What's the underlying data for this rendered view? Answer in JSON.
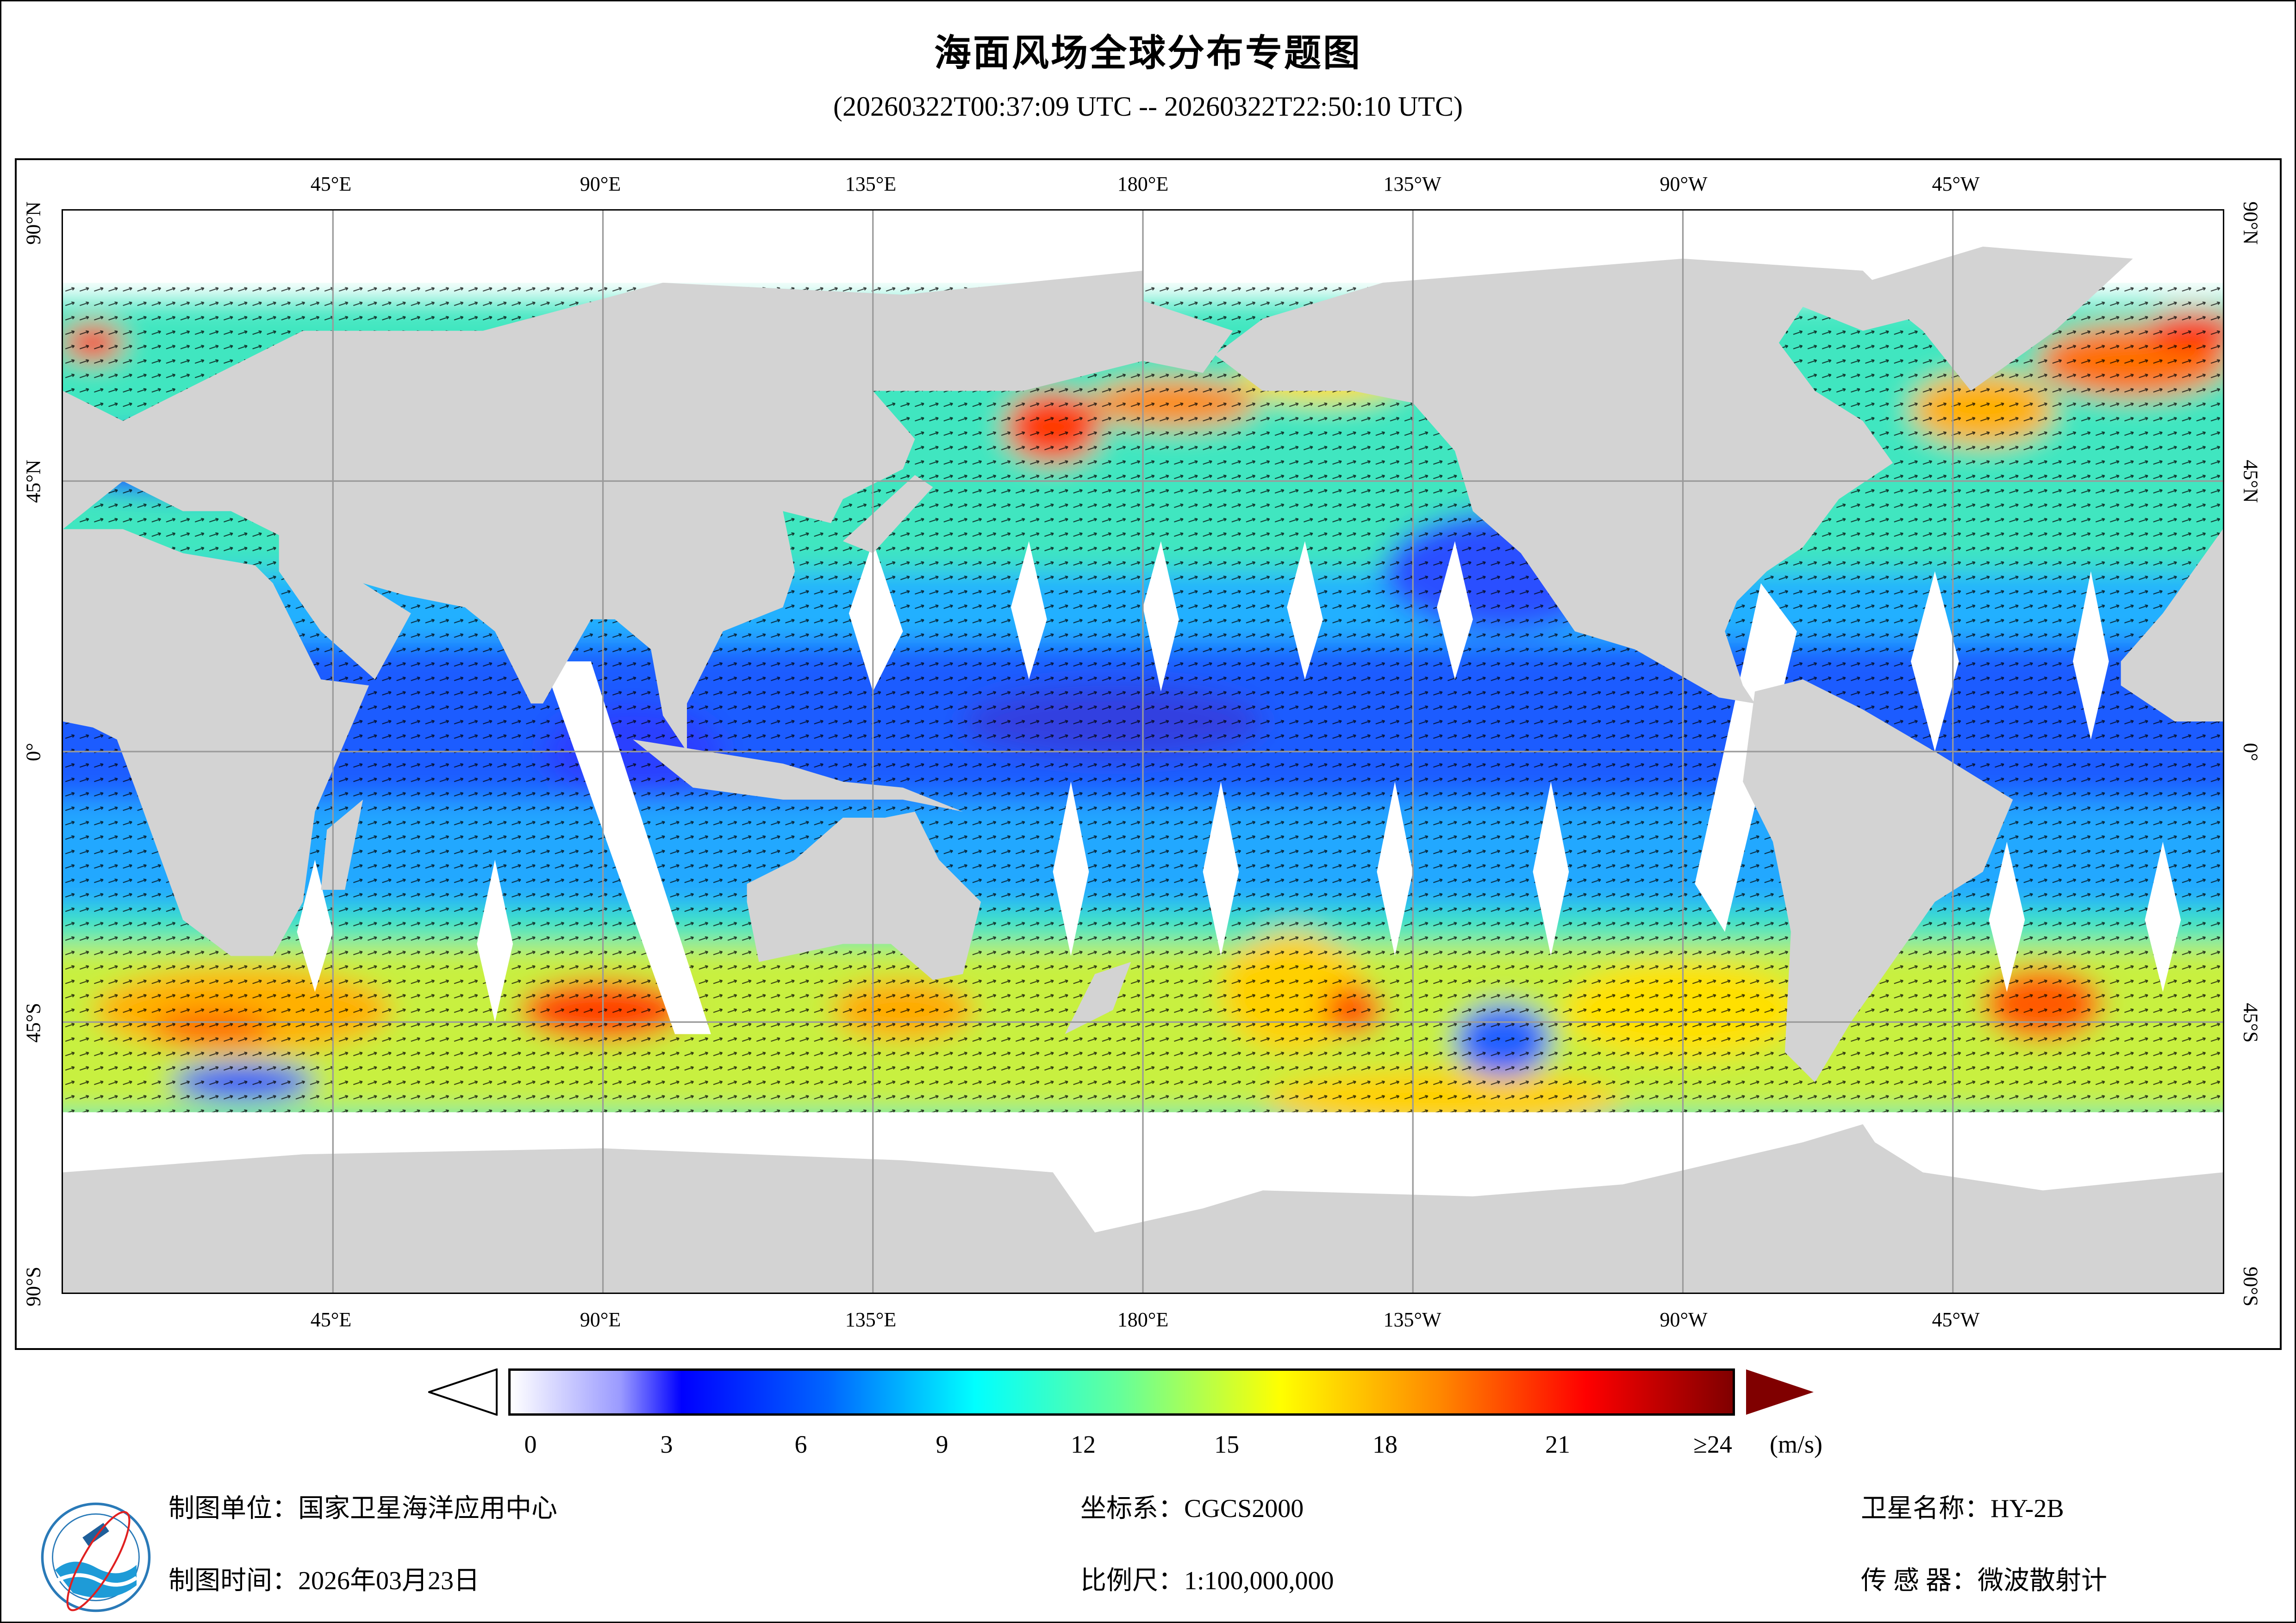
{
  "title": "海面风场全球分布专题图",
  "subtitle": "(20260322T00:37:09 UTC -- 20260322T22:50:10 UTC)",
  "map": {
    "lon_labels": [
      "45°E",
      "90°E",
      "135°E",
      "180°E",
      "135°W",
      "90°W",
      "45°W"
    ],
    "lat_labels": [
      "90°N",
      "45°N",
      "0°",
      "45°S",
      "90°S"
    ],
    "land_color": "#d3d3d3",
    "no_data_color": "#ffffff",
    "vector_color": "#000000"
  },
  "colorbar": {
    "ticks": [
      "0",
      "3",
      "6",
      "9",
      "12",
      "15",
      "18",
      "21",
      "≥24"
    ],
    "unit": "(m/s)",
    "range": [
      0,
      24
    ],
    "colors": [
      "#ffffff",
      "#9a9aff",
      "#0000ff",
      "#0066ff",
      "#00ffff",
      "#66ff99",
      "#ffff00",
      "#ff8800",
      "#ff0000",
      "#800000"
    ]
  },
  "footer": {
    "unit": "制图单位：国家卫星海洋应用中心",
    "time": "制图时间：2026年03月23日",
    "crs": "坐标系：CGCS2000",
    "scale": "比例尺：1:100,000,000",
    "satellite": "卫星名称：HY-2B",
    "sensor": "传 感 器：微波散射计"
  }
}
